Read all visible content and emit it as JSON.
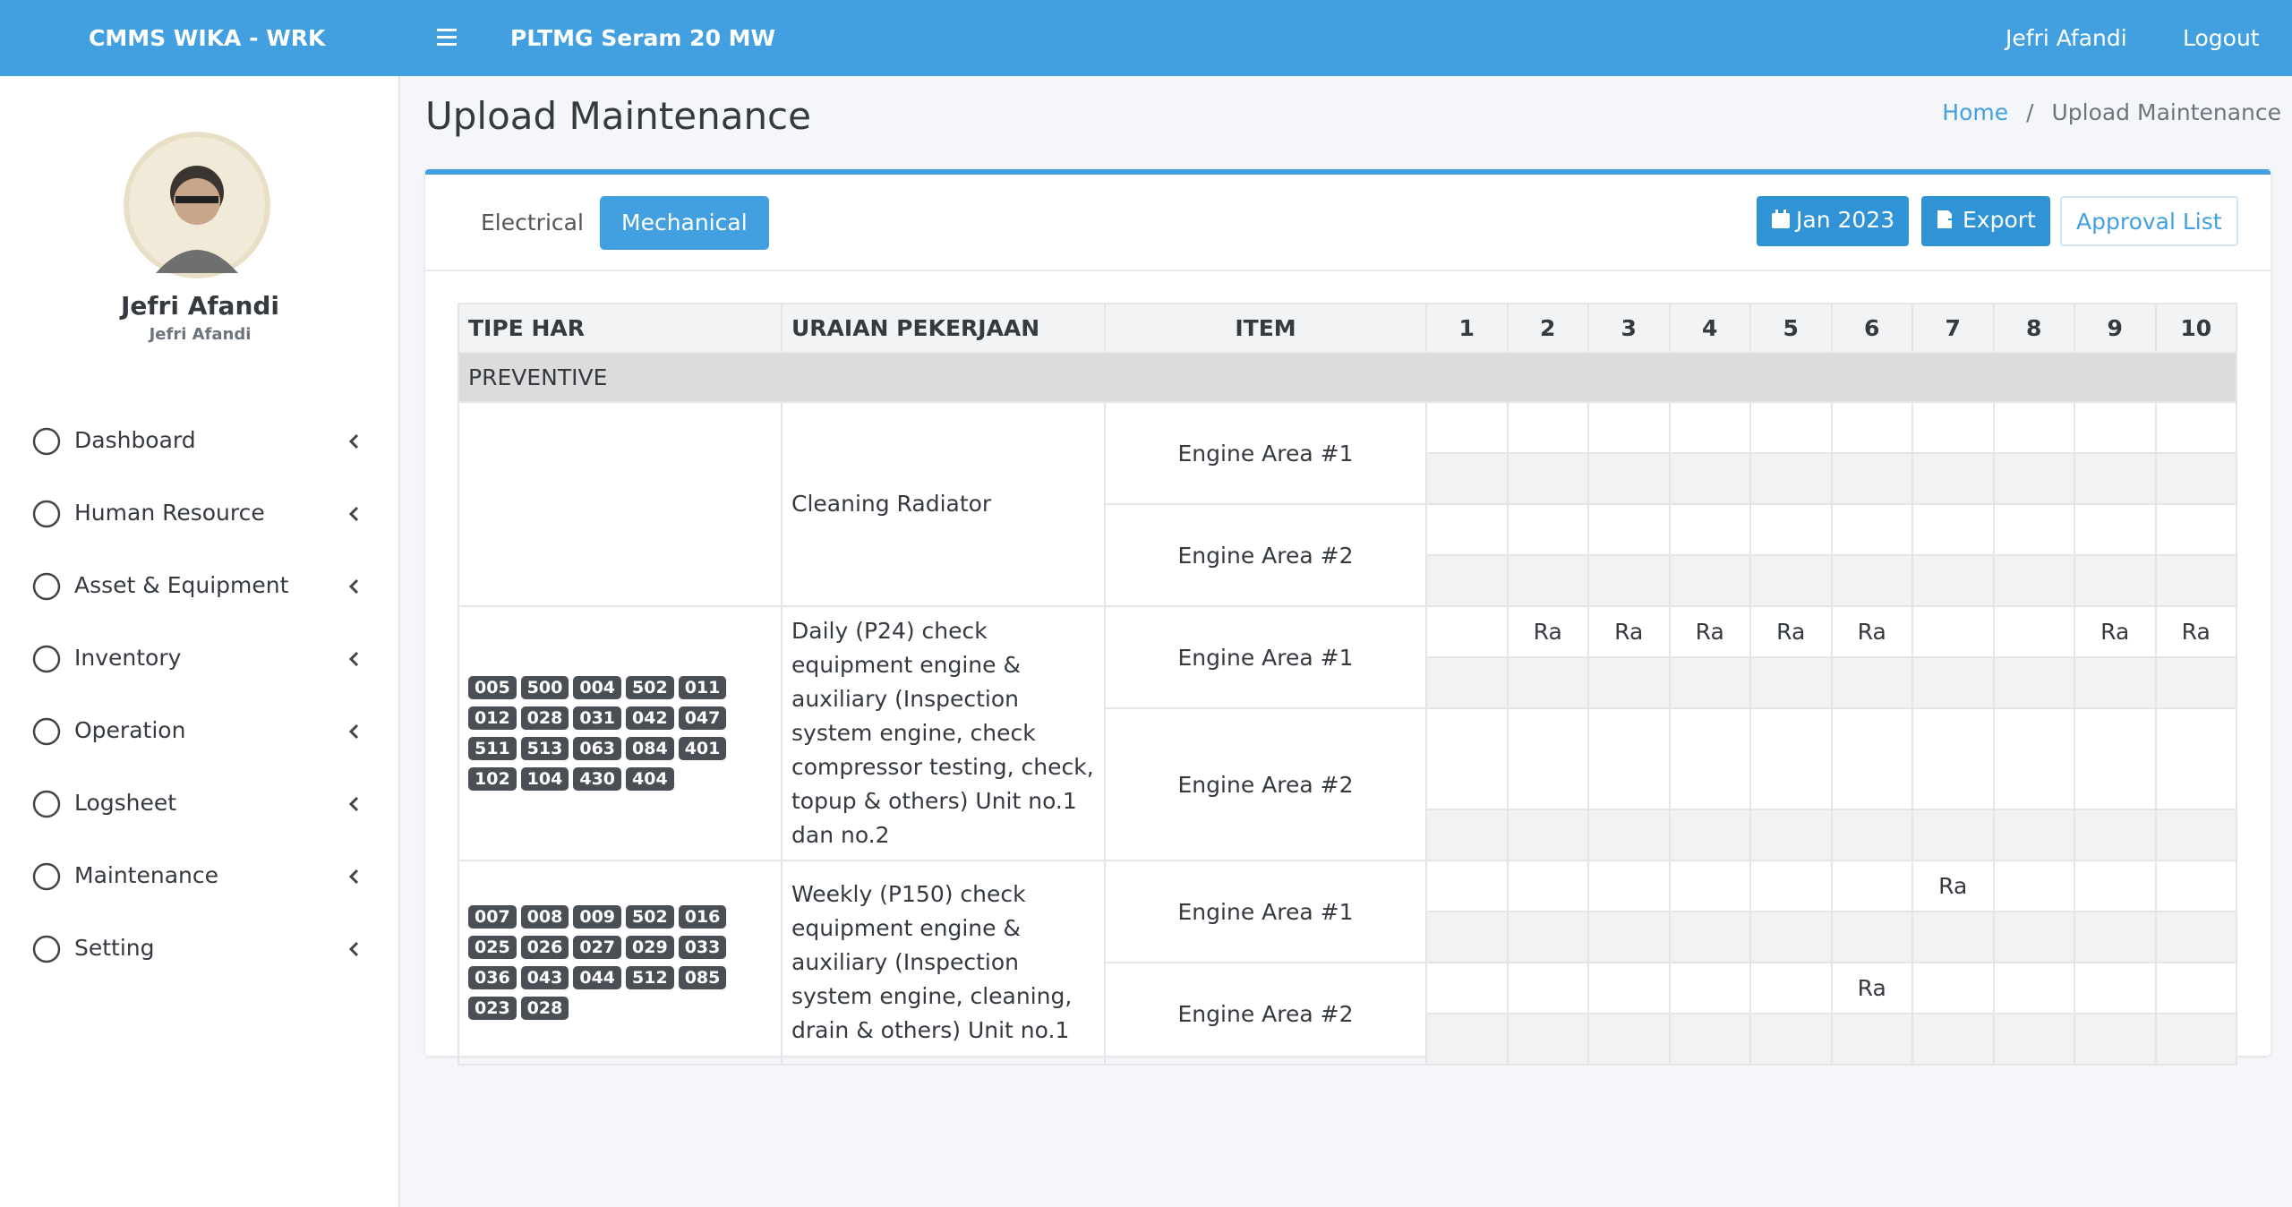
{
  "header": {
    "brand": "CMMS WIKA - WRK",
    "project": "PLTMG Seram 20 MW",
    "user": "Jefri Afandi",
    "logout": "Logout"
  },
  "sidebar": {
    "name": "Jefri Afandi",
    "role": "Jefri Afandi",
    "menu": [
      "Dashboard",
      "Human Resource",
      "Asset & Equipment",
      "Inventory",
      "Operation",
      "Logsheet",
      "Maintenance",
      "Setting"
    ]
  },
  "page": {
    "title": "Upload Maintenance",
    "breadcrumb": [
      "Home",
      "Upload Maintenance"
    ]
  },
  "tabs": [
    "Electrical",
    "Mechanical"
  ],
  "buttons": [
    "Jan 2023",
    "Export",
    "Approval List"
  ],
  "table": {
    "headers": [
      "TIPE HAR",
      "URAIAN PEKERJAAN",
      "ITEM"
    ],
    "days": [
      "1",
      "2",
      "3",
      "4",
      "5",
      "6",
      "7",
      "8",
      "9",
      "10"
    ],
    "section": "PREVENTIVE",
    "groups": [
      {
        "tags": [],
        "description": "Cleaning Radiator",
        "items": [
          {
            "name": "Engine Area #1",
            "cells": [
              null,
              null,
              null,
              null,
              null,
              null,
              null,
              null,
              null,
              null
            ]
          },
          {
            "name": "Engine Area #2",
            "cells": [
              null,
              null,
              null,
              null,
              null,
              null,
              null,
              null,
              null,
              null
            ]
          }
        ]
      },
      {
        "tags": [
          "005",
          "500",
          "004",
          "502",
          "011",
          "012",
          "028",
          "031",
          "042",
          "047",
          "511",
          "513",
          "063",
          "084",
          "401",
          "102",
          "104",
          "430",
          "404"
        ],
        "description": "Daily (P24) check equipment engine & auxiliary (Inspection system engine, check compressor testing, check, topup & others) Unit no.1 dan no.2",
        "items": [
          {
            "name": "Engine Area #1",
            "cells": [
              null,
              "Ra",
              "Ra",
              "Ra",
              "Ra",
              "Ra",
              null,
              null,
              "Ra",
              "Ra"
            ]
          },
          {
            "name": "Engine Area #2",
            "cells": [
              null,
              null,
              null,
              null,
              null,
              null,
              null,
              null,
              null,
              null
            ]
          }
        ]
      },
      {
        "tags": [
          "007",
          "008",
          "009",
          "502",
          "016",
          "025",
          "026",
          "027",
          "029",
          "033",
          "036",
          "043",
          "044",
          "512",
          "085",
          "023",
          "028"
        ],
        "description": "Weekly (P150) check equipment engine & auxiliary (Inspection system engine, cleaning, drain & others) Unit no.1",
        "items": [
          {
            "name": "Engine Area #1",
            "cells": [
              null,
              null,
              null,
              null,
              null,
              null,
              "Ra",
              null,
              null,
              null
            ]
          },
          {
            "name": "Engine Area #2",
            "cells": [
              null,
              null,
              null,
              null,
              null,
              "Ra",
              null,
              null,
              null,
              null
            ]
          }
        ]
      }
    ]
  }
}
